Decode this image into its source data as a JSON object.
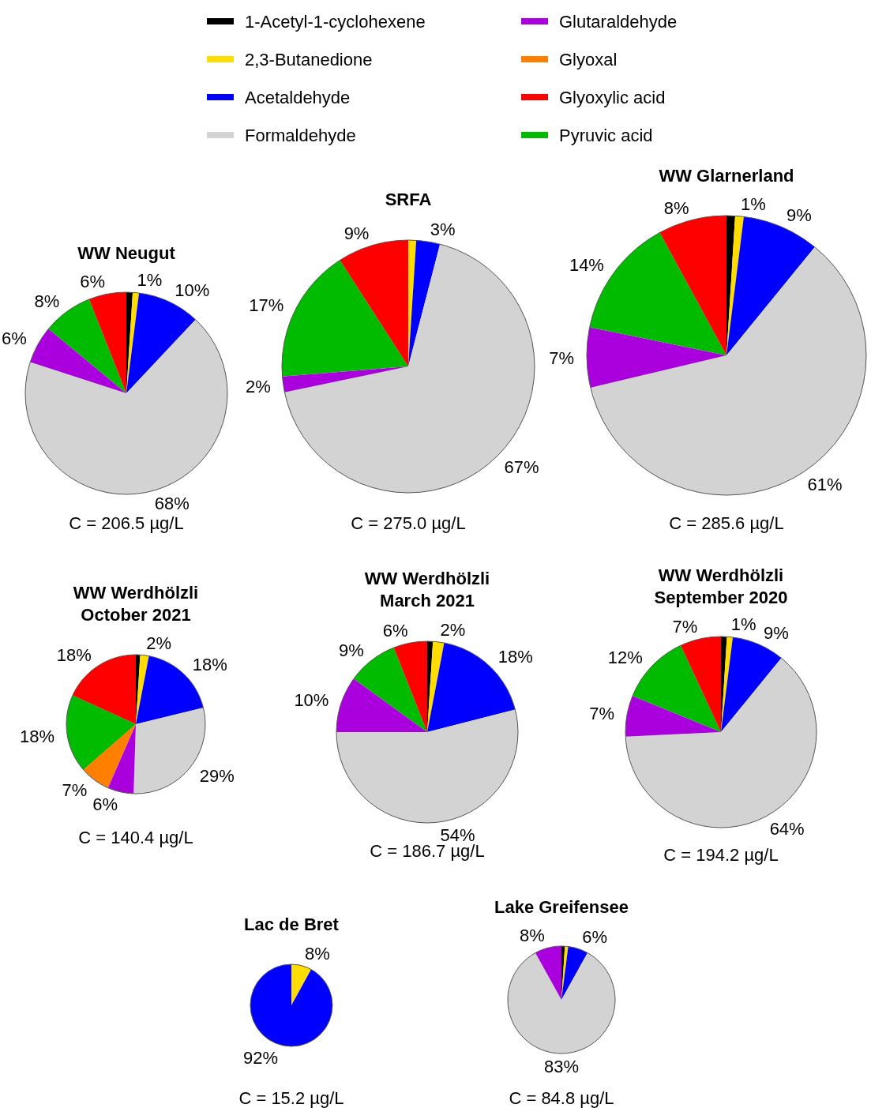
{
  "chart_data": [
    {
      "type": "pie",
      "title": "WW Neugut",
      "categories": [
        "1-Acetyl-1-cyclohexene",
        "2,3-Butanedione",
        "Acetaldehyde",
        "Formaldehyde",
        "Glutaraldehyde",
        "Glyoxal",
        "Pyruvic acid",
        "Glyoxylic acid"
      ],
      "values": [
        1,
        1,
        10,
        68,
        6,
        0,
        8,
        6
      ],
      "value_labels": [
        null,
        "1%",
        "10%",
        "68%",
        "6%",
        null,
        "8%",
        "6%"
      ],
      "colors": [
        "#000000",
        "#ffdd00",
        "#0000ff",
        "#d3d3d3",
        "#aa00dd",
        "#ff7f00",
        "#00bb00",
        "#ff0000"
      ],
      "legend": "top",
      "annotations": [
        "C = 206.5 µg/L"
      ]
    },
    {
      "type": "pie",
      "title": "SRFA",
      "categories": [
        null,
        null,
        null,
        null,
        null,
        null
      ],
      "values": [
        1,
        3,
        67,
        2,
        17,
        9
      ],
      "value_labels": [
        null,
        "3%",
        "67%",
        "2%",
        "17%",
        "9%"
      ],
      "colors": [
        "#ffdd00",
        "#0000ff",
        "#d3d3d3",
        "#aa00dd",
        "#00bb00",
        "#ff0000"
      ],
      "annotations": [
        "C = 275.0 µg/L"
      ]
    },
    {
      "type": "pie",
      "title": "WW Glarnerland",
      "categories": [
        null,
        null,
        null,
        null,
        null,
        null,
        null
      ],
      "values": [
        1,
        1,
        9,
        61,
        7,
        14,
        8
      ],
      "value_labels": [
        null,
        "1%",
        "9%",
        "61%",
        "7%",
        "14%",
        "8%"
      ],
      "colors": [
        "#000000",
        "#ffdd00",
        "#0000ff",
        "#d3d3d3",
        "#aa00dd",
        "#00bb00",
        "#ff0000"
      ],
      "annotations": [
        "C = 285.6 µg/L"
      ]
    },
    {
      "type": "pie",
      "title": "WW Werdhölzli",
      "subtitle": "October 2021",
      "categories": [
        null,
        null,
        null,
        null,
        null,
        null,
        null,
        null
      ],
      "values": [
        1,
        2,
        18,
        29,
        6,
        7,
        18,
        18
      ],
      "value_labels": [
        null,
        "2%",
        "18%",
        "29%",
        "6%",
        "7%",
        "18%",
        "18%"
      ],
      "colors": [
        "#000000",
        "#ffdd00",
        "#0000ff",
        "#d3d3d3",
        "#aa00dd",
        "#ff7f00",
        "#00bb00",
        "#ff0000"
      ],
      "annotations": [
        "C = 140.4 µg/L"
      ]
    },
    {
      "type": "pie",
      "title": "WW Werdhölzli",
      "subtitle": "March 2021",
      "categories": [
        null,
        null,
        null,
        null,
        null,
        null,
        null
      ],
      "values": [
        1,
        2,
        18,
        54,
        10,
        9,
        6
      ],
      "value_labels": [
        null,
        "2%",
        "18%",
        "54%",
        "10%",
        "9%",
        "6%"
      ],
      "colors": [
        "#000000",
        "#ffdd00",
        "#0000ff",
        "#d3d3d3",
        "#aa00dd",
        "#00bb00",
        "#ff0000"
      ],
      "annotations": [
        "C = 186.7 µg/L"
      ]
    },
    {
      "type": "pie",
      "title": "WW Werdhölzli",
      "subtitle": "September 2020",
      "categories": [
        null,
        null,
        null,
        null,
        null,
        null,
        null
      ],
      "values": [
        1,
        1,
        9,
        64,
        7,
        12,
        7
      ],
      "value_labels": [
        null,
        "1%",
        "9%",
        "64%",
        "7%",
        "12%",
        "7%"
      ],
      "colors": [
        "#000000",
        "#ffdd00",
        "#0000ff",
        "#d3d3d3",
        "#aa00dd",
        "#00bb00",
        "#ff0000"
      ],
      "annotations": [
        "C = 194.2 µg/L"
      ]
    },
    {
      "type": "pie",
      "title": "Lac de Bret",
      "categories": [
        null,
        null
      ],
      "values": [
        8,
        92
      ],
      "value_labels": [
        "8%",
        "92%"
      ],
      "colors": [
        "#ffdd00",
        "#0000ff"
      ],
      "annotations": [
        "C = 15.2 µg/L"
      ]
    },
    {
      "type": "pie",
      "title": "Lake Greifensee",
      "categories": [
        null,
        null,
        null,
        null,
        null
      ],
      "values": [
        1,
        1,
        6,
        83,
        8
      ],
      "value_labels": [
        null,
        null,
        "6%",
        "83%",
        "8%"
      ],
      "colors": [
        "#000000",
        "#ffdd00",
        "#0000ff",
        "#d3d3d3",
        "#aa00dd"
      ],
      "annotations": [
        "C = 84.8 µg/L"
      ]
    }
  ]
}
